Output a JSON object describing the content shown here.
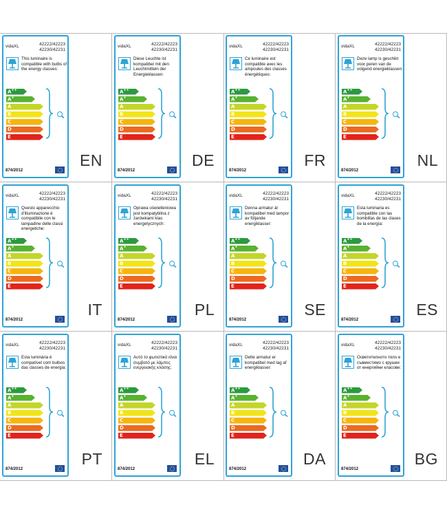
{
  "brand": "vidaXL",
  "model_line1": "42222/42223",
  "model_line2": "42230/42231",
  "regulation": "874/2012",
  "energy_classes": [
    {
      "label": "A",
      "sup": "++",
      "color": "#2b9a3f"
    },
    {
      "label": "A",
      "sup": "+",
      "color": "#59b230"
    },
    {
      "label": "A",
      "sup": "",
      "color": "#c4d52a"
    },
    {
      "label": "B",
      "sup": "",
      "color": "#f2e41a"
    },
    {
      "label": "C",
      "sup": "",
      "color": "#f5b50f"
    },
    {
      "label": "D",
      "sup": "",
      "color": "#ec6a1f"
    },
    {
      "label": "E",
      "sup": "",
      "color": "#e1251b"
    }
  ],
  "colors": {
    "accent": "#2ea3d6",
    "eu_blue": "#1f4ea3"
  },
  "labels": [
    {
      "lang": "EN",
      "text": "This luminaire is compatible with bulbs of the energy classes:"
    },
    {
      "lang": "DE",
      "text": "Diese Leuchte ist kompatibel mit den Leuchtmitteln der Energieklassen:"
    },
    {
      "lang": "FR",
      "text": "Ce luminaire est compatible avec les ampoules des classes énergétiques:"
    },
    {
      "lang": "NL",
      "text": "Deze lamp is geschikt voor peren van de volgend energieklassen:"
    },
    {
      "lang": "IT",
      "text": "Questo apparecchio d'illuminazione è compatibile con le lampadine delle classi energetiche:"
    },
    {
      "lang": "PL",
      "text": "Oprawa oświetleniowa jest kompatybilna z żarówkami klas energetycznych:"
    },
    {
      "lang": "SE",
      "text": "Denna armatur är kompatibel med lampor av följande energiklasser:"
    },
    {
      "lang": "ES",
      "text": "Esta luminaria es compatible con las bombillas de las clases de la energía:"
    },
    {
      "lang": "PT",
      "text": "Esta luminária é compatível com bulbos das classes de energia:"
    },
    {
      "lang": "EL",
      "text": "Αυτό το φωτιστικό είναι συμβατό με λάμπες ενεργειακής κλάσης:"
    },
    {
      "lang": "DA",
      "text": "Dette armatur er kompatibel med lag af energiklasser:"
    },
    {
      "lang": "BG",
      "text": "Осветителното тяло е съвместимо с крушки от енергийни класове:"
    }
  ]
}
